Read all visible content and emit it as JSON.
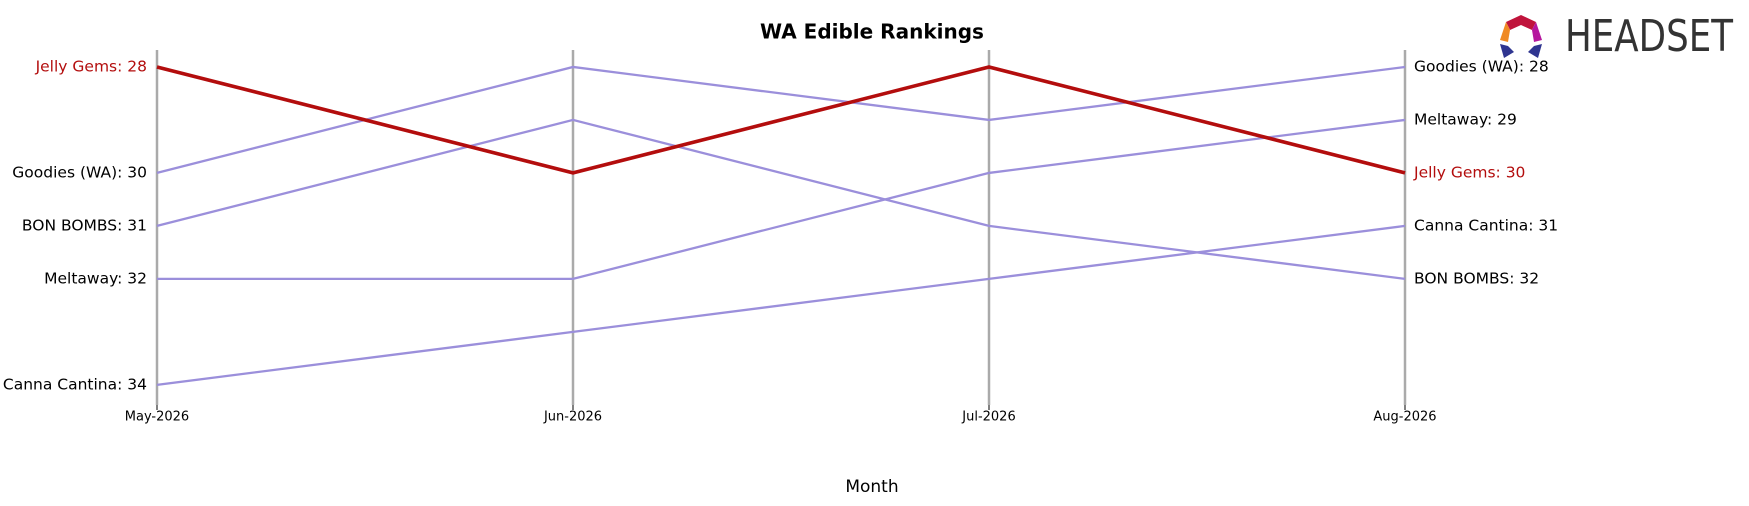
{
  "chart_data": {
    "type": "bump",
    "title": "WA Edible Rankings",
    "x_label": "Month",
    "logo": "HEADSET",
    "categories": [
      "May-2026",
      "Jun-2026",
      "Jul-2026",
      "Aug-2026"
    ],
    "ylim": [
      27.68,
      34.38
    ],
    "y_inverted": true,
    "grid": true,
    "series": [
      {
        "name": "Goodies (WA)",
        "color": "#9b8fdb",
        "label_color": "#000000",
        "values": [
          30,
          28,
          29,
          28
        ],
        "value_labels": [
          "Goodies (WA): 30",
          null,
          null,
          "Goodies (WA): 28"
        ]
      },
      {
        "name": "BON BOMBS",
        "color": "#9b8fdb",
        "label_color": "#000000",
        "values": [
          31,
          29,
          31,
          32
        ],
        "value_labels": [
          "BON BOMBS: 31",
          null,
          null,
          "BON BOMBS: 32"
        ]
      },
      {
        "name": "Meltaway",
        "color": "#9b8fdb",
        "label_color": "#000000",
        "values": [
          32,
          32,
          30,
          29
        ],
        "value_labels": [
          "Meltaway: 32",
          null,
          null,
          "Meltaway: 29"
        ]
      },
      {
        "name": "Canna Cantina",
        "color": "#9b8fdb",
        "label_color": "#000000",
        "values": [
          34,
          33,
          32,
          31
        ],
        "value_labels": [
          "Canna Cantina: 34",
          null,
          null,
          "Canna Cantina: 31"
        ]
      },
      {
        "name": "Jelly Gems",
        "color": "#b30d0d",
        "label_color": "#b30d0d",
        "values": [
          28,
          30,
          28,
          30
        ],
        "value_labels": [
          "Jelly Gems: 28",
          null,
          null,
          "Jelly Gems: 30"
        ],
        "highlight": true
      }
    ]
  }
}
